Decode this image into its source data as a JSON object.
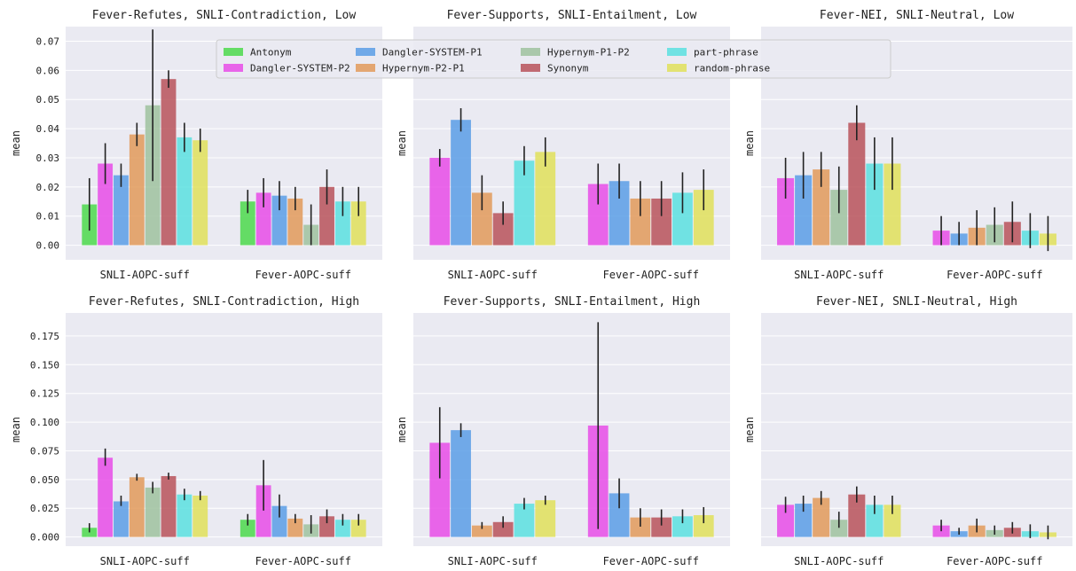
{
  "legend": {
    "placement": "top-center",
    "entries": [
      "Antonym",
      "Dangler-SYSTEM-P2",
      "Dangler-SYSTEM-P1",
      "Hypernym-P2-P1",
      "Hypernym-P1-P2",
      "Synonym",
      "part-phrase",
      "random-phrase"
    ]
  },
  "colors": {
    "Antonym": "#4cd94c",
    "Dangler-SYSTEM-P2": "#e84ce8",
    "Dangler-SYSTEM-P1": "#5a9ee6",
    "Hypernym-P2-P1": "#e29a5a",
    "Hypernym-P1-P2": "#9fc29f",
    "Synonym": "#b8525a",
    "part-phrase": "#5ae0e0",
    "random-phrase": "#e0e05a"
  },
  "chart_data": [
    {
      "type": "bar",
      "title": "Fever-Refutes, SNLI-Contradiction, Low",
      "ylabel": "mean",
      "ylim": [
        -0.005,
        0.075
      ],
      "yticks": [
        "0.00",
        "0.01",
        "0.02",
        "0.03",
        "0.04",
        "0.05",
        "0.06",
        "0.07"
      ],
      "grid": true,
      "categories": [
        "SNLI-AOPC-suff",
        "Fever-AOPC-suff"
      ],
      "series": [
        {
          "name": "Antonym",
          "values": [
            0.014,
            0.015
          ],
          "err": [
            [
              0.005,
              0.023
            ],
            [
              0.011,
              0.019
            ]
          ]
        },
        {
          "name": "Dangler-SYSTEM-P2",
          "values": [
            0.028,
            0.018
          ],
          "err": [
            [
              0.021,
              0.035
            ],
            [
              0.013,
              0.023
            ]
          ]
        },
        {
          "name": "Dangler-SYSTEM-P1",
          "values": [
            0.024,
            0.017
          ],
          "err": [
            [
              0.02,
              0.028
            ],
            [
              0.012,
              0.022
            ]
          ]
        },
        {
          "name": "Hypernym-P2-P1",
          "values": [
            0.038,
            0.016
          ],
          "err": [
            [
              0.034,
              0.042
            ],
            [
              0.012,
              0.02
            ]
          ]
        },
        {
          "name": "Hypernym-P1-P2",
          "values": [
            0.048,
            0.007
          ],
          "err": [
            [
              0.022,
              0.074
            ],
            [
              0.0,
              0.014
            ]
          ]
        },
        {
          "name": "Synonym",
          "values": [
            0.057,
            0.02
          ],
          "err": [
            [
              0.054,
              0.06
            ],
            [
              0.014,
              0.026
            ]
          ]
        },
        {
          "name": "part-phrase",
          "values": [
            0.037,
            0.015
          ],
          "err": [
            [
              0.032,
              0.042
            ],
            [
              0.01,
              0.02
            ]
          ]
        },
        {
          "name": "random-phrase",
          "values": [
            0.036,
            0.015
          ],
          "err": [
            [
              0.032,
              0.04
            ],
            [
              0.01,
              0.02
            ]
          ]
        }
      ]
    },
    {
      "type": "bar",
      "title": "Fever-Supports, SNLI-Entailment, Low",
      "ylabel": "mean",
      "ylim": [
        -0.005,
        0.075
      ],
      "yticks": [],
      "grid": true,
      "categories": [
        "SNLI-AOPC-suff",
        "Fever-AOPC-suff"
      ],
      "series": [
        {
          "name": "Dangler-SYSTEM-P2",
          "values": [
            0.03,
            0.021
          ],
          "err": [
            [
              0.027,
              0.033
            ],
            [
              0.014,
              0.028
            ]
          ]
        },
        {
          "name": "Dangler-SYSTEM-P1",
          "values": [
            0.043,
            0.022
          ],
          "err": [
            [
              0.039,
              0.047
            ],
            [
              0.016,
              0.028
            ]
          ]
        },
        {
          "name": "Hypernym-P2-P1",
          "values": [
            0.018,
            0.016
          ],
          "err": [
            [
              0.012,
              0.024
            ],
            [
              0.01,
              0.022
            ]
          ]
        },
        {
          "name": "Synonym",
          "values": [
            0.011,
            0.016
          ],
          "err": [
            [
              0.007,
              0.015
            ],
            [
              0.01,
              0.022
            ]
          ]
        },
        {
          "name": "part-phrase",
          "values": [
            0.029,
            0.018
          ],
          "err": [
            [
              0.024,
              0.034
            ],
            [
              0.011,
              0.025
            ]
          ]
        },
        {
          "name": "random-phrase",
          "values": [
            0.032,
            0.019
          ],
          "err": [
            [
              0.027,
              0.037
            ],
            [
              0.012,
              0.026
            ]
          ]
        }
      ]
    },
    {
      "type": "bar",
      "title": "Fever-NEI, SNLI-Neutral, Low",
      "ylabel": "mean",
      "ylim": [
        -0.005,
        0.075
      ],
      "yticks": [],
      "grid": true,
      "categories": [
        "SNLI-AOPC-suff",
        "Fever-AOPC-suff"
      ],
      "series": [
        {
          "name": "Dangler-SYSTEM-P2",
          "values": [
            0.023,
            0.005
          ],
          "err": [
            [
              0.016,
              0.03
            ],
            [
              0.0,
              0.01
            ]
          ]
        },
        {
          "name": "Dangler-SYSTEM-P1",
          "values": [
            0.024,
            0.004
          ],
          "err": [
            [
              0.016,
              0.032
            ],
            [
              0.0,
              0.008
            ]
          ]
        },
        {
          "name": "Hypernym-P2-P1",
          "values": [
            0.026,
            0.006
          ],
          "err": [
            [
              0.02,
              0.032
            ],
            [
              0.0,
              0.012
            ]
          ]
        },
        {
          "name": "Hypernym-P1-P2",
          "values": [
            0.019,
            0.007
          ],
          "err": [
            [
              0.011,
              0.027
            ],
            [
              0.001,
              0.013
            ]
          ]
        },
        {
          "name": "Synonym",
          "values": [
            0.042,
            0.008
          ],
          "err": [
            [
              0.036,
              0.048
            ],
            [
              0.001,
              0.015
            ]
          ]
        },
        {
          "name": "part-phrase",
          "values": [
            0.028,
            0.005
          ],
          "err": [
            [
              0.019,
              0.037
            ],
            [
              -0.001,
              0.011
            ]
          ]
        },
        {
          "name": "random-phrase",
          "values": [
            0.028,
            0.004
          ],
          "err": [
            [
              0.019,
              0.037
            ],
            [
              -0.002,
              0.01
            ]
          ]
        }
      ]
    },
    {
      "type": "bar",
      "title": "Fever-Refutes, SNLI-Contradiction, High",
      "ylabel": "mean",
      "ylim": [
        -0.008,
        0.195
      ],
      "yticks": [
        "0.000",
        "0.025",
        "0.050",
        "0.075",
        "0.100",
        "0.125",
        "0.150",
        "0.175"
      ],
      "grid": true,
      "categories": [
        "SNLI-AOPC-suff",
        "Fever-AOPC-suff"
      ],
      "series": [
        {
          "name": "Antonym",
          "values": [
            0.008,
            0.015
          ],
          "err": [
            [
              0.004,
              0.012
            ],
            [
              0.01,
              0.02
            ]
          ]
        },
        {
          "name": "Dangler-SYSTEM-P2",
          "values": [
            0.069,
            0.045
          ],
          "err": [
            [
              0.062,
              0.077
            ],
            [
              0.023,
              0.067
            ]
          ]
        },
        {
          "name": "Dangler-SYSTEM-P1",
          "values": [
            0.031,
            0.027
          ],
          "err": [
            [
              0.027,
              0.036
            ],
            [
              0.017,
              0.037
            ]
          ]
        },
        {
          "name": "Hypernym-P2-P1",
          "values": [
            0.052,
            0.016
          ],
          "err": [
            [
              0.049,
              0.055
            ],
            [
              0.012,
              0.02
            ]
          ]
        },
        {
          "name": "Hypernym-P1-P2",
          "values": [
            0.043,
            0.011
          ],
          "err": [
            [
              0.038,
              0.048
            ],
            [
              0.003,
              0.019
            ]
          ]
        },
        {
          "name": "Synonym",
          "values": [
            0.053,
            0.018
          ],
          "err": [
            [
              0.05,
              0.056
            ],
            [
              0.012,
              0.024
            ]
          ]
        },
        {
          "name": "part-phrase",
          "values": [
            0.037,
            0.015
          ],
          "err": [
            [
              0.032,
              0.042
            ],
            [
              0.01,
              0.02
            ]
          ]
        },
        {
          "name": "random-phrase",
          "values": [
            0.036,
            0.015
          ],
          "err": [
            [
              0.032,
              0.04
            ],
            [
              0.01,
              0.02
            ]
          ]
        }
      ]
    },
    {
      "type": "bar",
      "title": "Fever-Supports, SNLI-Entailment, High",
      "ylabel": "mean",
      "ylim": [
        -0.008,
        0.195
      ],
      "yticks": [],
      "grid": true,
      "categories": [
        "SNLI-AOPC-suff",
        "Fever-AOPC-suff"
      ],
      "series": [
        {
          "name": "Dangler-SYSTEM-P2",
          "values": [
            0.082,
            0.097
          ],
          "err": [
            [
              0.051,
              0.113
            ],
            [
              0.007,
              0.187
            ]
          ]
        },
        {
          "name": "Dangler-SYSTEM-P1",
          "values": [
            0.093,
            0.038
          ],
          "err": [
            [
              0.087,
              0.099
            ],
            [
              0.025,
              0.051
            ]
          ]
        },
        {
          "name": "Hypernym-P2-P1",
          "values": [
            0.01,
            0.017
          ],
          "err": [
            [
              0.007,
              0.013
            ],
            [
              0.009,
              0.025
            ]
          ]
        },
        {
          "name": "Synonym",
          "values": [
            0.013,
            0.017
          ],
          "err": [
            [
              0.008,
              0.018
            ],
            [
              0.01,
              0.024
            ]
          ]
        },
        {
          "name": "part-phrase",
          "values": [
            0.029,
            0.018
          ],
          "err": [
            [
              0.024,
              0.034
            ],
            [
              0.012,
              0.024
            ]
          ]
        },
        {
          "name": "random-phrase",
          "values": [
            0.032,
            0.019
          ],
          "err": [
            [
              0.028,
              0.036
            ],
            [
              0.012,
              0.026
            ]
          ]
        }
      ]
    },
    {
      "type": "bar",
      "title": "Fever-NEI, SNLI-Neutral, High",
      "ylabel": "mean",
      "ylim": [
        -0.008,
        0.195
      ],
      "yticks": [],
      "grid": true,
      "categories": [
        "SNLI-AOPC-suff",
        "Fever-AOPC-suff"
      ],
      "series": [
        {
          "name": "Dangler-SYSTEM-P2",
          "values": [
            0.028,
            0.01
          ],
          "err": [
            [
              0.021,
              0.035
            ],
            [
              0.005,
              0.015
            ]
          ]
        },
        {
          "name": "Dangler-SYSTEM-P1",
          "values": [
            0.029,
            0.005
          ],
          "err": [
            [
              0.022,
              0.036
            ],
            [
              0.002,
              0.008
            ]
          ]
        },
        {
          "name": "Hypernym-P2-P1",
          "values": [
            0.034,
            0.01
          ],
          "err": [
            [
              0.028,
              0.04
            ],
            [
              0.004,
              0.016
            ]
          ]
        },
        {
          "name": "Hypernym-P1-P2",
          "values": [
            0.015,
            0.006
          ],
          "err": [
            [
              0.008,
              0.022
            ],
            [
              0.002,
              0.01
            ]
          ]
        },
        {
          "name": "Synonym",
          "values": [
            0.037,
            0.008
          ],
          "err": [
            [
              0.03,
              0.044
            ],
            [
              0.003,
              0.013
            ]
          ]
        },
        {
          "name": "part-phrase",
          "values": [
            0.028,
            0.005
          ],
          "err": [
            [
              0.02,
              0.036
            ],
            [
              -0.001,
              0.011
            ]
          ]
        },
        {
          "name": "random-phrase",
          "values": [
            0.028,
            0.004
          ],
          "err": [
            [
              0.02,
              0.036
            ],
            [
              -0.002,
              0.01
            ]
          ]
        }
      ]
    }
  ]
}
